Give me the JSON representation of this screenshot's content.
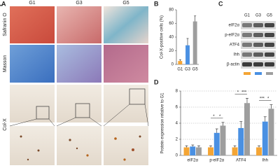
{
  "panel_labels": [
    "A",
    "B",
    "C",
    "D"
  ],
  "histology": {
    "columns": [
      "G1",
      "G3",
      "G5"
    ],
    "rows": [
      "Safranin O",
      "Masson",
      "Col-X"
    ]
  },
  "western_blot": {
    "lanes": [
      "G1",
      "G3",
      "G5"
    ],
    "proteins": [
      "eIF2α",
      "p-eIF2α",
      "ATF4",
      "Ihh",
      "β-actin"
    ]
  },
  "chart_data": [
    {
      "type": "bar",
      "y_label": "Col-X-positive cells (%)",
      "categories": [
        "G1",
        "G3",
        "G5"
      ],
      "values": [
        5,
        28,
        63
      ],
      "errors": [
        2,
        10,
        8
      ],
      "colors": [
        "#f4a535",
        "#4a90e2",
        "#9e9e9e"
      ],
      "ylim": [
        0,
        80
      ],
      "yticks": [
        0,
        20,
        40,
        60,
        80
      ],
      "grid": false,
      "annotations": [
        "**",
        "***"
      ]
    },
    {
      "type": "bar",
      "y_label": "Protein expression relative to G1",
      "categories": [
        "eIF2α",
        "p-eIF2α",
        "ATF4",
        "Ihh"
      ],
      "series": [
        {
          "color": "#f4a535",
          "values": [
            1,
            1,
            1,
            1
          ],
          "errors": [
            0.2,
            0.2,
            0.2,
            0.2
          ]
        },
        {
          "color": "#4a90e2",
          "values": [
            1.1,
            2.8,
            3.4,
            4.2
          ],
          "errors": [
            0.2,
            0.5,
            0.8,
            0.6
          ]
        },
        {
          "color": "#9e9e9e",
          "values": [
            1,
            3.7,
            6.5,
            5.8
          ],
          "errors": [
            0.2,
            0.4,
            0.6,
            0.5
          ]
        }
      ],
      "ylim": [
        0,
        8
      ],
      "yticks": [
        0,
        2,
        4,
        6,
        8
      ],
      "grid": true,
      "annotations": [
        "*",
        "*",
        "*",
        "***",
        "***",
        "*"
      ]
    }
  ]
}
